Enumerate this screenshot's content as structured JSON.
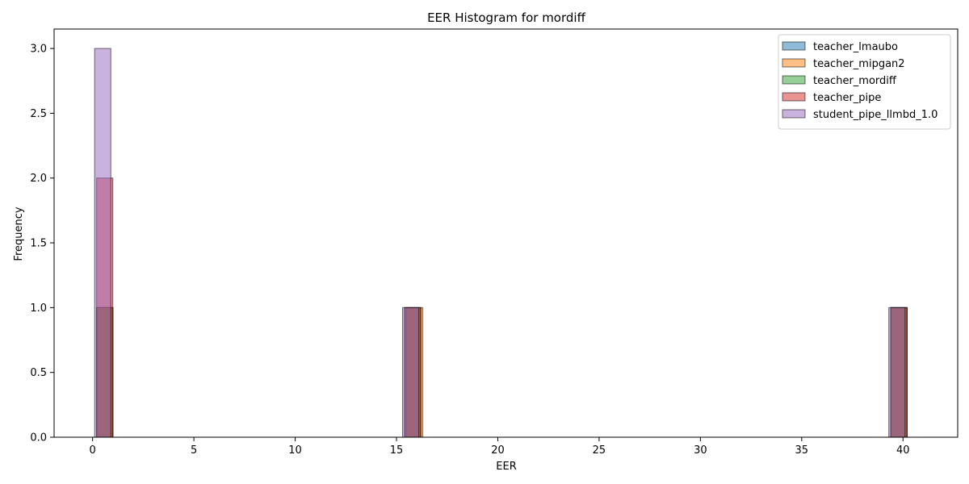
{
  "chart_data": {
    "type": "bar",
    "title": "EER Histogram for mordiff",
    "xlabel": "EER",
    "ylabel": "Frequency",
    "xlim": [
      -1.9,
      42.7
    ],
    "ylim": [
      0,
      3.15
    ],
    "xticks": [
      0,
      5,
      10,
      15,
      20,
      25,
      30,
      35,
      40
    ],
    "yticks": [
      0.0,
      0.5,
      1.0,
      1.5,
      2.0,
      2.5,
      3.0
    ],
    "grid": false,
    "legend_position": "top-right",
    "series": [
      {
        "name": "teacher_lmaubo",
        "color": "#1f77b4",
        "bins": [
          {
            "x0": 0.2,
            "x1": 1.0,
            "count": 1
          },
          {
            "x0": 15.4,
            "x1": 16.2,
            "count": 1
          },
          {
            "x0": 39.4,
            "x1": 40.2,
            "count": 1
          }
        ]
      },
      {
        "name": "teacher_mipgan2",
        "color": "#ff7f0e",
        "bins": [
          {
            "x0": 0.2,
            "x1": 1.0,
            "count": 1
          },
          {
            "x0": 15.5,
            "x1": 16.3,
            "count": 1
          },
          {
            "x0": 39.4,
            "x1": 40.2,
            "count": 1
          }
        ]
      },
      {
        "name": "teacher_mordiff",
        "color": "#2ca02c",
        "bins": [
          {
            "x0": 0.2,
            "x1": 1.0,
            "count": 1
          },
          {
            "x0": 15.4,
            "x1": 16.2,
            "count": 1
          },
          {
            "x0": 39.4,
            "x1": 40.2,
            "count": 1
          }
        ]
      },
      {
        "name": "teacher_pipe",
        "color": "#d62728",
        "bins": [
          {
            "x0": 0.2,
            "x1": 1.0,
            "count": 2
          },
          {
            "x0": 15.4,
            "x1": 16.2,
            "count": 1
          },
          {
            "x0": 39.4,
            "x1": 40.2,
            "count": 1
          }
        ]
      },
      {
        "name": "student_pipe_llmbd_1.0",
        "color": "#9467bd",
        "bins": [
          {
            "x0": 0.1,
            "x1": 0.9,
            "count": 3
          },
          {
            "x0": 15.3,
            "x1": 16.1,
            "count": 1
          },
          {
            "x0": 39.3,
            "x1": 40.1,
            "count": 1
          }
        ]
      }
    ]
  }
}
